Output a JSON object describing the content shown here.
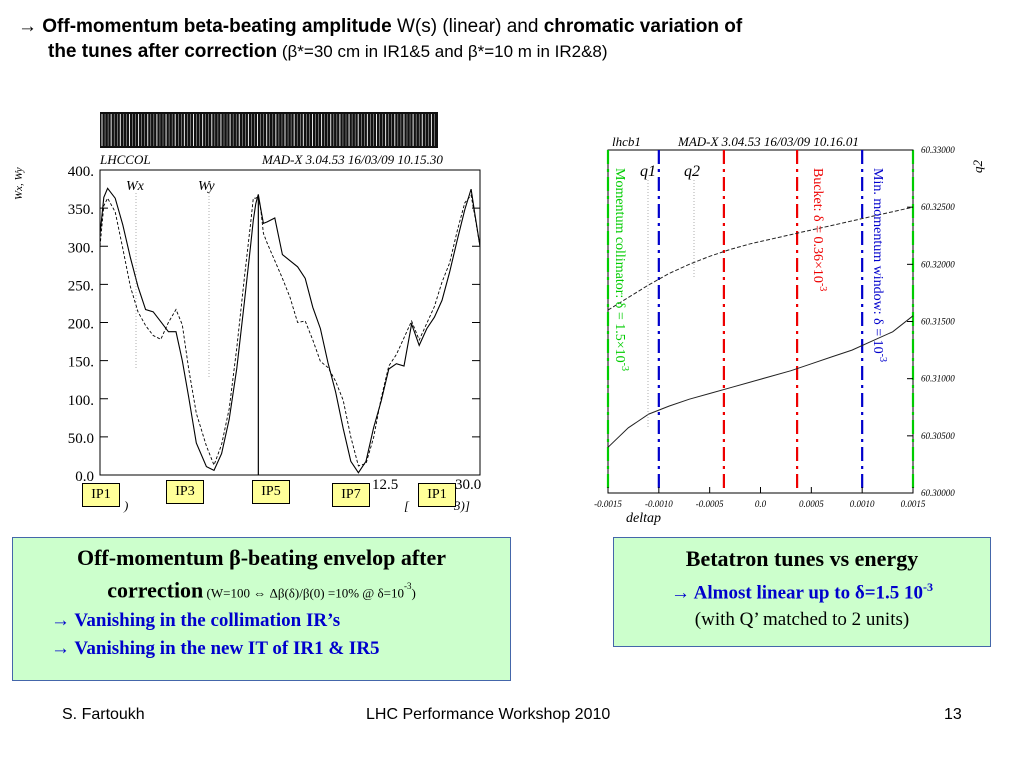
{
  "title": {
    "arrow": "→",
    "bold1": "Off-momentum beta-beating amplitude",
    "mid": " W(s) (linear) and ",
    "bold2": "chromatic variation of",
    "bold3": "the tunes after correction",
    "paren": " (β*=30 cm in IR1&5 and β*=10 m in IR2&8)"
  },
  "left_plot": {
    "header_left": "LHCCOL",
    "header_right": "MAD-X 3.04.53   16/03/09 10.15.30",
    "ylabel": "Wx, Wy",
    "legend_wx": "Wx",
    "legend_wy": "Wy",
    "ytick_labels": [
      "400.",
      "350.",
      "300.",
      "250.",
      "200.",
      "150.",
      "100.",
      "50.0",
      "0.0"
    ],
    "xtick_labels": [
      "12.5",
      "30.0"
    ],
    "xlabel_partial": "[",
    "xlabel_partial2": "3)]",
    "xlabel_left_partial": ")",
    "ip_labels": [
      "IP1",
      "IP3",
      "IP5",
      "IP7",
      "IP1"
    ]
  },
  "right_plot": {
    "header_left": "lhcb1",
    "header_right": "MAD-X 3.04.53   16/03/09 10.16.01",
    "q1_label": "q1",
    "q2_label": "q2",
    "y2label": "q2",
    "xlabel": "deltap",
    "xtick_labels": [
      "-0.0015",
      "-0.0010",
      "-0.0005",
      "0.0",
      "0.0005",
      "0.0010",
      "0.0015"
    ],
    "y2tick_labels": [
      "60.33000",
      "60.32500",
      "60.32000",
      "60.31500",
      "60.31000",
      "60.30500",
      "60.30000"
    ],
    "green_label": "Momentum collimator: δ = 1.5×10",
    "green_exp": "-3",
    "red_label": "Bucket: δ = 0.36×10",
    "red_exp": "-3",
    "blue_label": "Min. momentum window: δ = 10",
    "blue_exp": "-3",
    "colors": {
      "green": "#00cc00",
      "red": "#ee0000",
      "blue": "#0000cc"
    }
  },
  "chart_data": [
    {
      "type": "line",
      "title": "",
      "xlabel": "",
      "ylabel": "Wx, Wy",
      "ylim": [
        0,
        400
      ],
      "xlim": [
        0,
        30.0
      ],
      "series": [
        {
          "name": "Wx",
          "x": [
            0,
            0.3,
            0.6,
            1.2,
            1.8,
            2.4,
            3,
            3.6,
            4.2,
            4.8,
            5.4,
            6,
            6.5,
            7,
            7.6,
            8.4,
            9,
            9.6,
            10.2,
            10.8,
            11.4,
            11.9,
            12.1,
            12.3,
            12.5,
            12.7,
            12.9,
            13.2,
            13.8,
            14.4,
            15,
            15.6,
            16.2,
            16.8,
            17.4,
            18,
            18.6,
            19.2,
            19.8,
            20.4,
            21,
            21.6,
            22.2,
            22.8,
            23.4,
            24,
            24.6,
            25.2,
            25.8,
            26.4,
            27,
            27.6,
            28.2,
            28.8,
            29.3,
            29.6,
            30
          ],
          "y": [
            315,
            365,
            375,
            360,
            330,
            285,
            245,
            220,
            215,
            200,
            185,
            190,
            150,
            100,
            45,
            12,
            5,
            25,
            75,
            140,
            225,
            305,
            335,
            355,
            365,
            350,
            330,
            330,
            340,
            290,
            280,
            270,
            260,
            220,
            190,
            150,
            110,
            60,
            15,
            5,
            18,
            60,
            100,
            140,
            145,
            140,
            200,
            170,
            190,
            210,
            230,
            265,
            305,
            350,
            375,
            340,
            300
          ]
        },
        {
          "name": "Wy",
          "x": [
            0,
            0.3,
            0.6,
            1.2,
            1.8,
            2.4,
            3,
            3.6,
            4.2,
            4.8,
            5.4,
            6,
            6.5,
            7,
            7.6,
            8.4,
            9,
            9.6,
            10.2,
            10.8,
            11.4,
            11.9,
            12.1,
            12.3,
            12.5,
            12.7,
            12.9,
            13.2,
            13.8,
            14.4,
            15,
            15.6,
            16.2,
            16.8,
            17.4,
            18,
            18.6,
            19.2,
            19.8,
            20.4,
            21,
            21.6,
            22.2,
            22.8,
            23.4,
            24,
            24.6,
            25.2,
            25.8,
            26.4,
            27,
            27.6,
            28.2,
            28.8,
            29.3,
            29.6,
            30
          ],
          "y": [
            300,
            350,
            365,
            345,
            295,
            250,
            215,
            195,
            180,
            180,
            200,
            215,
            200,
            140,
            80,
            35,
            15,
            40,
            85,
            170,
            260,
            330,
            360,
            365,
            365,
            345,
            320,
            305,
            280,
            255,
            235,
            200,
            200,
            180,
            150,
            140,
            120,
            100,
            50,
            10,
            18,
            50,
            100,
            140,
            160,
            180,
            200,
            180,
            200,
            220,
            250,
            280,
            320,
            355,
            370,
            340,
            300
          ]
        }
      ],
      "xtick_labels": [
        "12.5",
        "30.0"
      ],
      "ytick_labels": [
        "400.",
        "350.",
        "300.",
        "250.",
        "200.",
        "150.",
        "100.",
        "50.0",
        "0.0"
      ],
      "grid": false,
      "legend": "top-left"
    },
    {
      "type": "line",
      "title": "",
      "xlabel": "deltap",
      "ylabel": "q2",
      "xlim": [
        -0.0015,
        0.0015
      ],
      "ylim": [
        60.3,
        60.33
      ],
      "series": [
        {
          "name": "q1",
          "x": [
            -0.0015,
            -0.0013,
            -0.0011,
            -0.0009,
            -0.0007,
            -0.0005,
            -0.0003,
            -0.0001,
            0.0001,
            0.0003,
            0.0005,
            0.0007,
            0.0009,
            0.0011,
            0.0013,
            0.0015
          ],
          "y": [
            60.304,
            60.3057,
            60.3069,
            60.3076,
            60.3082,
            60.3087,
            60.3092,
            60.3097,
            60.3102,
            60.3107,
            60.3113,
            60.3119,
            60.3125,
            60.3133,
            60.3141,
            60.3155
          ]
        },
        {
          "name": "q2",
          "x": [
            -0.0015,
            -0.0013,
            -0.0011,
            -0.0009,
            -0.0007,
            -0.0005,
            -0.0003,
            -0.0001,
            0.0001,
            0.0003,
            0.0005,
            0.0007,
            0.0009,
            0.0011,
            0.0013,
            0.0015
          ],
          "y": [
            60.316,
            60.3171,
            60.3182,
            60.3192,
            60.32,
            60.3207,
            60.3213,
            60.3218,
            60.3222,
            60.3226,
            60.323,
            60.3234,
            60.3238,
            60.3242,
            60.3246,
            60.325
          ]
        }
      ],
      "vlines": [
        {
          "x": -0.0015,
          "color": "#00cc00"
        },
        {
          "x": 0.0015,
          "color": "#00cc00"
        },
        {
          "x": -0.001,
          "color": "#0000cc"
        },
        {
          "x": 0.001,
          "color": "#0000cc"
        },
        {
          "x": -0.00036,
          "color": "#ee0000"
        },
        {
          "x": 0.00036,
          "color": "#ee0000"
        }
      ],
      "xtick_labels": [
        "-0.0015",
        "-0.0010",
        "-0.0005",
        "0.0",
        "0.0005",
        "0.0010",
        "0.0015"
      ],
      "y2tick_labels": [
        "60.33000",
        "60.32500",
        "60.32000",
        "60.31500",
        "60.31000",
        "60.30500",
        "60.30000"
      ],
      "grid": false
    }
  ],
  "left_box": {
    "line1": "Off-momentum β-beating envelop after",
    "line2": "correction",
    "note": " (W=100 ⇔ Δβ(δ)/β(0) =10% @ δ=10",
    "note_exp": "-3",
    "note_end": ")",
    "bullet1": "→ Vanishing in the collimation IR’s",
    "bullet2": "→ Vanishing in the new IT of IR1 & IR5"
  },
  "right_box": {
    "heading": "Betatron tunes vs energy",
    "line1": "→ Almost linear up to δ=1.5 10",
    "line1_exp": "-3",
    "line2": "(with Q’ matched to 2 units)"
  },
  "footer": {
    "author": "S. Fartoukh",
    "event": "LHC Performance Workshop 2010",
    "page": "13"
  }
}
